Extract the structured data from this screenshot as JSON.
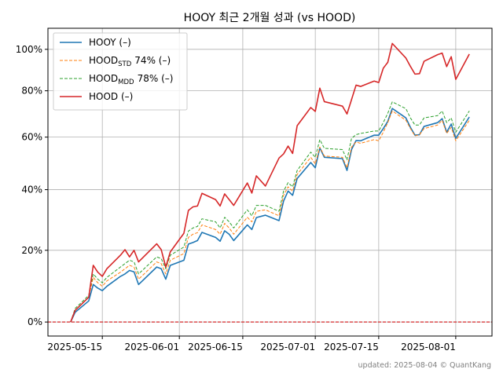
{
  "chart_data": {
    "type": "line",
    "title": "HOOY 최근 2개월 성과 (vs HOOD)",
    "footer": "updated: 2025-08-04 © QuantKang",
    "yscale": "log1p",
    "grid": true,
    "legend": "upper left",
    "hline": {
      "value": 0,
      "color": "#d62728"
    },
    "xlim": [
      "2025-05-03",
      "2025-08-09"
    ],
    "xticks": [
      "2025-05-15",
      "2025-06-01",
      "2025-06-15",
      "2025-07-01",
      "2025-07-15",
      "2025-08-01"
    ],
    "ylim": [
      -3.5,
      111
    ],
    "yticks": [
      {
        "value": 0,
        "label": "0%"
      },
      {
        "value": 20,
        "label": "20%"
      },
      {
        "value": 40,
        "label": "40%"
      },
      {
        "value": 60,
        "label": "60%"
      },
      {
        "value": 80,
        "label": "80%"
      },
      {
        "value": 100,
        "label": "100%"
      }
    ],
    "x": [
      "2025-05-08",
      "2025-05-09",
      "2025-05-12",
      "2025-05-13",
      "2025-05-14",
      "2025-05-15",
      "2025-05-16",
      "2025-05-19",
      "2025-05-20",
      "2025-05-21",
      "2025-05-22",
      "2025-05-23",
      "2025-05-27",
      "2025-05-28",
      "2025-05-29",
      "2025-05-30",
      "2025-06-02",
      "2025-06-03",
      "2025-06-04",
      "2025-06-05",
      "2025-06-06",
      "2025-06-09",
      "2025-06-10",
      "2025-06-11",
      "2025-06-12",
      "2025-06-13",
      "2025-06-16",
      "2025-06-17",
      "2025-06-18",
      "2025-06-20",
      "2025-06-23",
      "2025-06-24",
      "2025-06-25",
      "2025-06-26",
      "2025-06-27",
      "2025-06-30",
      "2025-07-01",
      "2025-07-02",
      "2025-07-03",
      "2025-07-07",
      "2025-07-08",
      "2025-07-09",
      "2025-07-10",
      "2025-07-11",
      "2025-07-14",
      "2025-07-15",
      "2025-07-16",
      "2025-07-17",
      "2025-07-18",
      "2025-07-21",
      "2025-07-22",
      "2025-07-23",
      "2025-07-24",
      "2025-07-25",
      "2025-07-28",
      "2025-07-29",
      "2025-07-30",
      "2025-07-31",
      "2025-08-01",
      "2025-08-04"
    ],
    "series": [
      {
        "name": "HOOY (–)",
        "color": "#1f77b4",
        "dash": false,
        "values": [
          0,
          2.5,
          5.5,
          10,
          9,
          8.3,
          9.5,
          12.3,
          13,
          14,
          13.6,
          10,
          15,
          14.5,
          11.5,
          15.5,
          17,
          21.9,
          22.4,
          23,
          25.6,
          24,
          22.8,
          26.1,
          25,
          23,
          28,
          26.5,
          30.4,
          31.2,
          29.4,
          36,
          39.5,
          38,
          44,
          50,
          48,
          55.7,
          52,
          51.5,
          47,
          55,
          58.6,
          58.5,
          60.8,
          60.8,
          63.5,
          66.5,
          72.1,
          68,
          64,
          60.8,
          61,
          64.4,
          66,
          67.7,
          62,
          65.4,
          59.5,
          68.4
        ]
      },
      {
        "name": "HOOD",
        "name_sub": "STD",
        "name_rest": "74% (–)",
        "color": "#ff7f0e",
        "dash": true,
        "values": [
          0,
          3,
          6.5,
          12,
          10.5,
          9.5,
          11,
          13.5,
          14.5,
          15.5,
          15,
          11.5,
          16.5,
          16,
          13,
          17,
          19,
          24,
          25,
          25.5,
          28,
          26.5,
          25,
          28.5,
          27,
          25,
          30.5,
          29,
          32.5,
          33,
          31,
          38,
          41,
          39.5,
          45.5,
          52,
          49.5,
          56,
          52.5,
          52,
          48,
          56,
          58,
          57.5,
          59,
          58.5,
          62,
          66,
          71,
          67,
          63.5,
          60.5,
          61,
          63.5,
          65,
          67,
          61.5,
          64,
          58.5,
          67
        ]
      },
      {
        "name": "HOOD",
        "name_sub": "MDD",
        "name_rest": "78% (–)",
        "color": "#2ca02c",
        "dash": true,
        "values": [
          0,
          3.5,
          7,
          13,
          11.5,
          10.5,
          12,
          15,
          16,
          17,
          16.5,
          13,
          18,
          17.5,
          14.5,
          18.5,
          21,
          26,
          27,
          27.5,
          30,
          29,
          27,
          30.5,
          29,
          27,
          33,
          31,
          34.5,
          34.5,
          32.5,
          39.5,
          42.5,
          41,
          47,
          54,
          52,
          59,
          55.5,
          55,
          51,
          59.5,
          61,
          61.5,
          62.5,
          62.5,
          66,
          70,
          75,
          72,
          68,
          65,
          65,
          68,
          69,
          71,
          66,
          68,
          62,
          71
        ]
      },
      {
        "name": "HOOD (–)",
        "color": "#d62728",
        "dash": false,
        "values": [
          0,
          3,
          6.5,
          15.5,
          13.5,
          12.3,
          14.5,
          18.5,
          20.2,
          18,
          20,
          16.5,
          22,
          20.2,
          15,
          19.5,
          25.3,
          32.8,
          34,
          34.3,
          38.7,
          36.5,
          34.3,
          38.5,
          36.5,
          34.5,
          42.4,
          38.8,
          45,
          41.3,
          51.7,
          53.3,
          56.4,
          53.5,
          64.7,
          72.5,
          70.8,
          81.2,
          75.1,
          73.1,
          69.7,
          76,
          82.6,
          82,
          84.5,
          83.8,
          90.6,
          93.5,
          103,
          95.6,
          91.5,
          87.8,
          88,
          94,
          97.3,
          98.1,
          91.4,
          96.3,
          85.3,
          97.6
        ]
      }
    ]
  }
}
